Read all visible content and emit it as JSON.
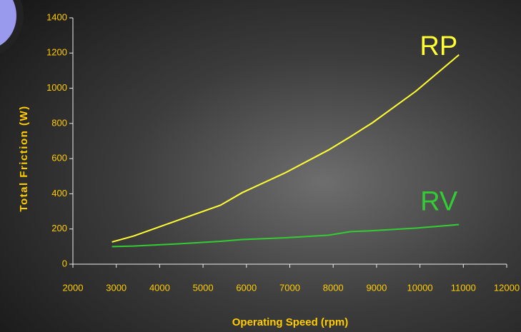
{
  "chart_data": {
    "type": "line",
    "xlabel": "Operating Speed (rpm)",
    "ylabel": "Total Friction (W)",
    "x": [
      2900,
      3400,
      4400,
      5400,
      5900,
      6900,
      7900,
      8400,
      8900,
      9900,
      10900
    ],
    "series": [
      {
        "name": "RP",
        "color": "#ffff33",
        "values": [
          126,
          160,
          248,
          335,
          406,
          520,
          650,
          725,
          803,
          982,
          1190
        ]
      },
      {
        "name": "RV",
        "color": "#33cc33",
        "values": [
          100,
          103,
          115,
          130,
          140,
          150,
          165,
          185,
          190,
          205,
          225
        ]
      }
    ],
    "xlim": [
      2000,
      12000
    ],
    "xticks": [
      2000,
      3000,
      4000,
      5000,
      6000,
      7000,
      8000,
      9000,
      10000,
      11000,
      12000
    ],
    "ylim": [
      0,
      1400
    ],
    "yticks": [
      0,
      200,
      400,
      600,
      800,
      1000,
      1200,
      1400
    ]
  }
}
